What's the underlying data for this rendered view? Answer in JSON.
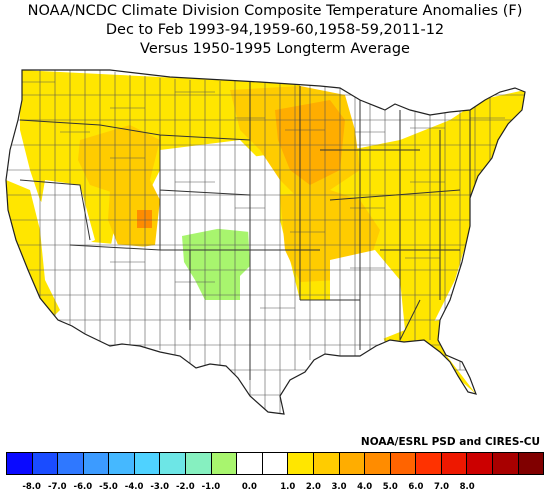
{
  "title": {
    "line1": "NOAA/NCDC Climate Division Composite Temperature Anomalies (F)",
    "line2": "Dec to Feb  1993-94,1959-60,1958-59,2011-12",
    "line3": "Versus 1950-1995 Longterm Average"
  },
  "credit": "NOAA/ESRL PSD and CIRES-CU",
  "legend": {
    "colors": [
      "#0a0aff",
      "#1a4cff",
      "#2f78ff",
      "#3c9bff",
      "#45b8ff",
      "#4fd2ff",
      "#6de6e6",
      "#86f0c0",
      "#a8f56e",
      "#ffffff",
      "#ffffff",
      "#ffe600",
      "#ffcc00",
      "#ffad00",
      "#ff8c00",
      "#ff6400",
      "#ff3200",
      "#ee1800",
      "#cc0000",
      "#a80000",
      "#800000"
    ],
    "ticks": [
      "-8.0",
      "-7.0",
      "-6.0",
      "-5.0",
      "-4.0",
      "-3.0",
      "-2.0",
      "-1.0",
      "0.0",
      "1.0",
      "2.0",
      "3.0",
      "4.0",
      "5.0",
      "6.0",
      "7.0",
      "8.0"
    ]
  },
  "map_colors": {
    "pale_yellow": "#fff000",
    "yellow": "#ffe600",
    "gold": "#ffcc00",
    "orange": "#ffad00",
    "dark_orange": "#ff8c00",
    "green": "#a8f56e",
    "white": "#ffffff",
    "border": "#444444"
  }
}
